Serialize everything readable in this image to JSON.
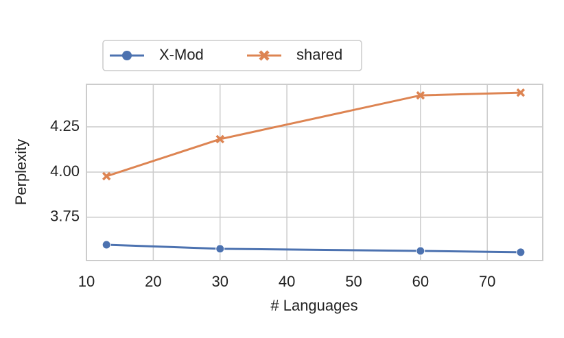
{
  "chart_data": {
    "type": "line",
    "x_label": "# Languages",
    "y_label": "Perplexity",
    "x": [
      13,
      30,
      60,
      75
    ],
    "series": [
      {
        "name": "X-Mod",
        "color": "#4c72b0",
        "marker": "circle",
        "values": [
          3.598,
          3.576,
          3.564,
          3.557
        ]
      },
      {
        "name": "shared",
        "color": "#dd8452",
        "marker": "x",
        "values": [
          3.977,
          4.182,
          4.424,
          4.439
        ]
      }
    ],
    "xlim": [
      10,
      78.3
    ],
    "xticks": [
      10,
      20,
      30,
      40,
      50,
      60,
      70
    ],
    "ylim": [
      3.511,
      4.485
    ],
    "yticks": [
      {
        "value": 3.75,
        "label": "3.75"
      },
      {
        "value": 4.0,
        "label": "4.00"
      },
      {
        "value": 4.25,
        "label": "4.25"
      }
    ],
    "grid": true,
    "legend": "top"
  }
}
